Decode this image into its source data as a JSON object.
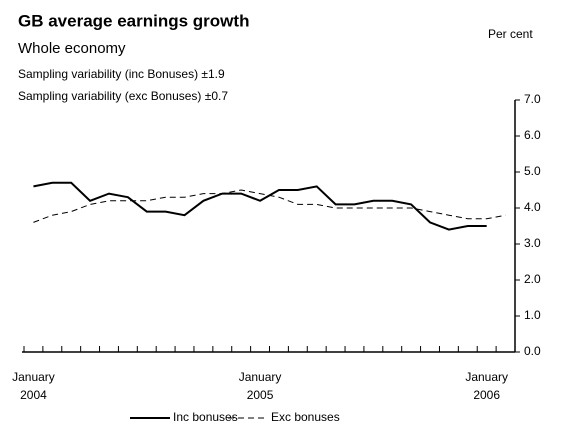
{
  "chart_data": {
    "type": "line",
    "title": "GB average earnings growth",
    "subtitle": "Whole economy",
    "notes": [
      "Sampling variability (inc Bonuses) ±1.9",
      "Sampling variability (exc Bonuses) ±0.7"
    ],
    "y_unit": "Per cent",
    "categories": [
      "January 2004",
      null,
      null,
      null,
      null,
      null,
      null,
      null,
      null,
      null,
      null,
      null,
      "January 2005",
      null,
      null,
      null,
      null,
      null,
      null,
      null,
      null,
      null,
      null,
      null,
      "January 2006",
      null
    ],
    "series": [
      {
        "name": "Inc bonuses",
        "color": "#000000",
        "dash": false,
        "values": [
          4.6,
          4.7,
          4.7,
          4.2,
          4.4,
          4.3,
          3.9,
          3.9,
          3.8,
          4.2,
          4.4,
          4.4,
          4.2,
          4.5,
          4.5,
          4.6,
          4.1,
          4.1,
          4.2,
          4.2,
          4.1,
          3.6,
          3.4,
          3.5,
          3.5,
          null
        ]
      },
      {
        "name": "Exc bonuses",
        "color": "#000000",
        "dash": true,
        "values": [
          3.6,
          3.8,
          3.9,
          4.1,
          4.2,
          4.2,
          4.2,
          4.3,
          4.3,
          4.4,
          4.4,
          4.5,
          4.4,
          4.3,
          4.1,
          4.1,
          4.0,
          4.0,
          4.0,
          4.0,
          4.0,
          3.9,
          3.8,
          3.7,
          3.7,
          3.8
        ]
      }
    ],
    "ylim": [
      0,
      7
    ],
    "yticks": [
      {
        "value": 0,
        "label": "0.0"
      },
      {
        "value": 1,
        "label": "1.0"
      },
      {
        "value": 2,
        "label": "2.0"
      },
      {
        "value": 3,
        "label": "3.0"
      },
      {
        "value": 4,
        "label": "4.0"
      },
      {
        "value": 5,
        "label": "5.0"
      },
      {
        "value": 6,
        "label": "6.0"
      },
      {
        "value": 7,
        "label": "7.0"
      }
    ],
    "grid": false
  }
}
